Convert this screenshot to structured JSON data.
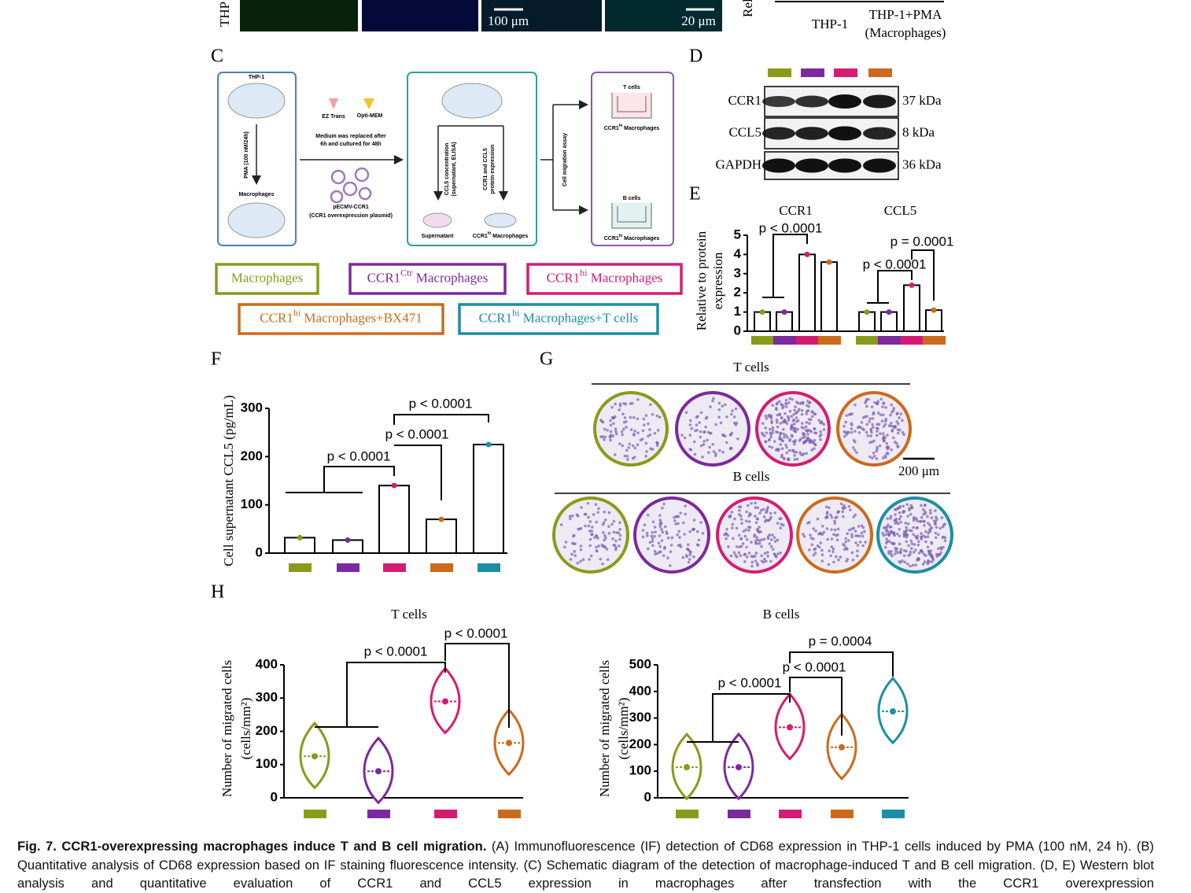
{
  "top_strip": {
    "row_label": "THP",
    "scale_a": "100 μm",
    "scale_b": "20 μm",
    "axis_label": "Rel",
    "cat_1": "THP-1",
    "cat_2": [
      "THP-1+PMA",
      "(Macrophages)"
    ]
  },
  "panel_letters": [
    "C",
    "D",
    "E",
    "F",
    "G",
    "H"
  ],
  "diagram": {
    "thp1": "THP-1",
    "pma": "PMA (100 nM/24h)",
    "macrophages": "Macrophages",
    "ez": "EZ Trans",
    "opti": "Opti-MEM",
    "medium": [
      "Medium was replaced after",
      "6h and cultured for 48h"
    ],
    "plasmid": [
      "pECMV-CCR1",
      "(CCR1 overexpression plasmid)"
    ],
    "ccl5_conc": [
      "CCL5 concentration",
      "(supernatant, ELISA)"
    ],
    "ccr1_expr": [
      "CCR1 and CCL5",
      "protein expression"
    ],
    "supernatant": "Supernatant",
    "hi_mac": {
      "base": "CCR1",
      "sup": "hi",
      "rest": " Macrophages"
    },
    "migration": "Cell migration assay",
    "tcells": "T cells",
    "bcells": "B cells"
  },
  "groups": [
    {
      "label": "Macrophages",
      "color": "#8a9a1b"
    },
    {
      "label": "CCR1",
      "sup": "Ctr",
      "suffix": " Macrophages",
      "color": "#7b2a9e"
    },
    {
      "label": "CCR1",
      "sup": "hi",
      "suffix": " Macrophages",
      "color": "#d41d72"
    },
    {
      "label": "CCR1",
      "sup": "hi",
      "suffix": " Macrophages+BX471",
      "color": "#cc6a1c"
    },
    {
      "label": "CCR1",
      "sup": "hi",
      "suffix": " Macrophages+T cells",
      "color": "#1d8ea3"
    }
  ],
  "blot": {
    "rows": [
      {
        "name": "CCR1",
        "size": "37 kDa"
      },
      {
        "name": "CCL5",
        "size": "8 kDa"
      },
      {
        "name": "GAPDH",
        "size": "36 kDa"
      }
    ]
  },
  "chart_data": [
    {
      "type": "grouped-bar",
      "ylabel": [
        "Relative to protein",
        "expression"
      ],
      "groups": [
        {
          "name": "CCR1",
          "values": [
            1.0,
            1.0,
            4.0,
            3.6
          ]
        },
        {
          "name": "CCL5",
          "values": [
            1.0,
            1.0,
            2.4,
            1.1
          ]
        }
      ],
      "colors": [
        "#8a9a1b",
        "#7b2a9e",
        "#d41d72",
        "#cc6a1c"
      ],
      "ylim": [
        0,
        5
      ],
      "yticks": [
        0,
        1,
        2,
        3,
        4,
        5
      ],
      "annotations": [
        "p < 0.0001",
        "p < 0.0001",
        "p = 0.0001"
      ]
    },
    {
      "type": "bar",
      "ylabel": "Cell supernatant CCL5 (pg/mL)",
      "values": [
        32,
        27,
        140,
        70,
        225
      ],
      "colors": [
        "#8a9a1b",
        "#7b2a9e",
        "#d41d72",
        "#cc6a1c",
        "#1d8ea3"
      ],
      "ylim": [
        0,
        300
      ],
      "yticks": [
        0,
        100,
        200,
        300
      ],
      "annotations": [
        "p < 0.0001",
        "p < 0.0001",
        "p < 0.0001"
      ]
    },
    {
      "type": "violin",
      "title": "T cells",
      "ylabel": [
        "Number of migrated cells",
        "(cells/mm²)"
      ],
      "values": [
        125,
        80,
        290,
        165
      ],
      "colors": [
        "#8a9a1b",
        "#7b2a9e",
        "#d41d72",
        "#cc6a1c"
      ],
      "ylim": [
        0,
        400
      ],
      "yticks": [
        0,
        100,
        200,
        300,
        400
      ],
      "annotations": [
        "p < 0.0001",
        "p < 0.0001"
      ]
    },
    {
      "type": "violin",
      "title": "B cells",
      "ylabel": [
        "Number of migrated cells",
        "(cells/mm²)"
      ],
      "values": [
        115,
        115,
        265,
        190,
        325
      ],
      "colors": [
        "#8a9a1b",
        "#7b2a9e",
        "#d41d72",
        "#cc6a1c",
        "#1d8ea3"
      ],
      "ylim": [
        0,
        500
      ],
      "yticks": [
        0,
        100,
        200,
        300,
        400,
        500
      ],
      "annotations": [
        "p < 0.0001",
        "p < 0.0001",
        "p = 0.0004"
      ]
    }
  ],
  "g_panel": {
    "t_title": "T cells",
    "b_title": "B cells",
    "scale": "200 μm"
  },
  "caption": {
    "title": "Fig. 7. CCR1-overexpressing macrophages induce T and B cell migration.",
    "text": "(A) Immunofluorescence (IF) detection of CD68 expression in THP-1 cells induced by PMA (100 nM, 24 h). (B) Quantitative analysis of CD68 expression based on IF staining fluorescence intensity. (C) Schematic diagram of the detection of macrophage-induced T and B cell migration. (D, E) Western blot analysis and quantitative evaluation of CCR1 and CCL5 expression in macrophages after transfection with the CCR1 overexpression"
  }
}
